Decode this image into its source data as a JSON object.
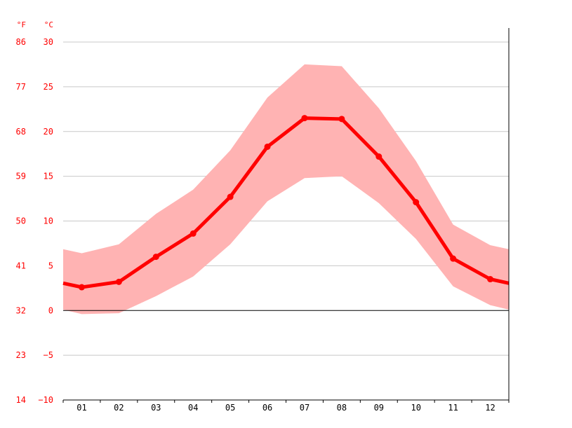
{
  "chart_data": {
    "type": "line",
    "title": "",
    "xlabel": "",
    "ylabel": "°C",
    "y2label": "°F",
    "categories": [
      "01",
      "02",
      "03",
      "04",
      "05",
      "06",
      "07",
      "08",
      "09",
      "10",
      "11",
      "12"
    ],
    "series": [
      {
        "role": "mean",
        "values": [
          2.6,
          3.2,
          6.0,
          8.6,
          12.7,
          18.3,
          21.5,
          21.4,
          17.2,
          12.1,
          5.8,
          3.5
        ]
      },
      {
        "role": "max",
        "values": [
          6.4,
          7.4,
          10.8,
          13.5,
          17.9,
          23.8,
          27.5,
          27.3,
          22.6,
          16.7,
          9.6,
          7.3
        ]
      },
      {
        "role": "min",
        "values": [
          -0.4,
          -0.3,
          1.6,
          3.8,
          7.4,
          12.2,
          14.8,
          15.0,
          12.0,
          8.0,
          2.7,
          0.6
        ]
      }
    ],
    "ylim": [
      -10,
      30
    ],
    "yticks_c": [
      30,
      25,
      20,
      15,
      10,
      5,
      0,
      -5,
      -10
    ],
    "yticks_c_labels": [
      "30",
      "25",
      "20",
      "15",
      "10",
      "5",
      "0",
      "−5",
      "−10"
    ],
    "yticks_f_labels": [
      "86",
      "77",
      "68",
      "59",
      "50",
      "41",
      "32",
      "23",
      "14"
    ],
    "grid": true,
    "colors": {
      "line": "#ff0000",
      "band": "#ffb3b3",
      "axis_text": "#ff0000",
      "grid": "#c8c8c8",
      "zero_line": "#000000"
    }
  }
}
